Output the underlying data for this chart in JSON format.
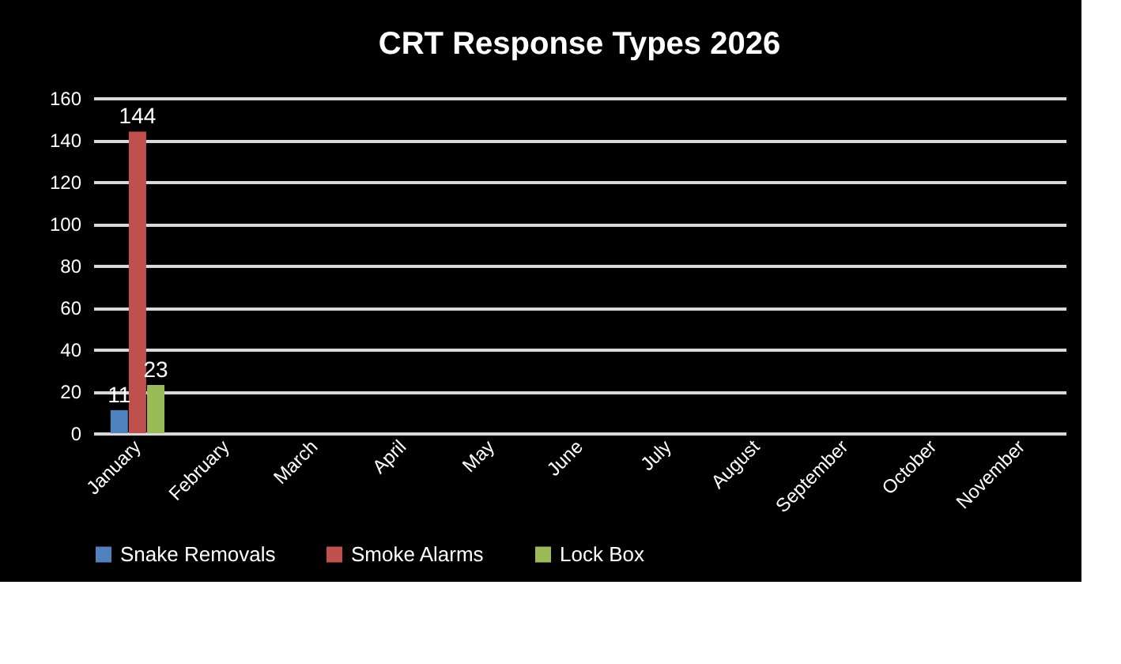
{
  "chart_data": {
    "type": "bar",
    "title": "CRT Response Types 2026",
    "categories": [
      "January",
      "February",
      "March",
      "April",
      "May",
      "June",
      "July",
      "August",
      "September",
      "October",
      "November"
    ],
    "series": [
      {
        "name": "Snake Removals",
        "color": "#4f81bd",
        "values": [
          11,
          null,
          null,
          null,
          null,
          null,
          null,
          null,
          null,
          null,
          null
        ]
      },
      {
        "name": "Smoke Alarms",
        "color": "#c0504d",
        "values": [
          144,
          null,
          null,
          null,
          null,
          null,
          null,
          null,
          null,
          null,
          null
        ]
      },
      {
        "name": "Lock Box",
        "color": "#9bbb59",
        "values": [
          23,
          null,
          null,
          null,
          null,
          null,
          null,
          null,
          null,
          null,
          null
        ]
      }
    ],
    "ylim": [
      0,
      160
    ],
    "yticks": [
      0,
      20,
      40,
      60,
      80,
      100,
      120,
      140,
      160
    ],
    "grid": "y",
    "legend": "bottom",
    "data_labels": true
  }
}
